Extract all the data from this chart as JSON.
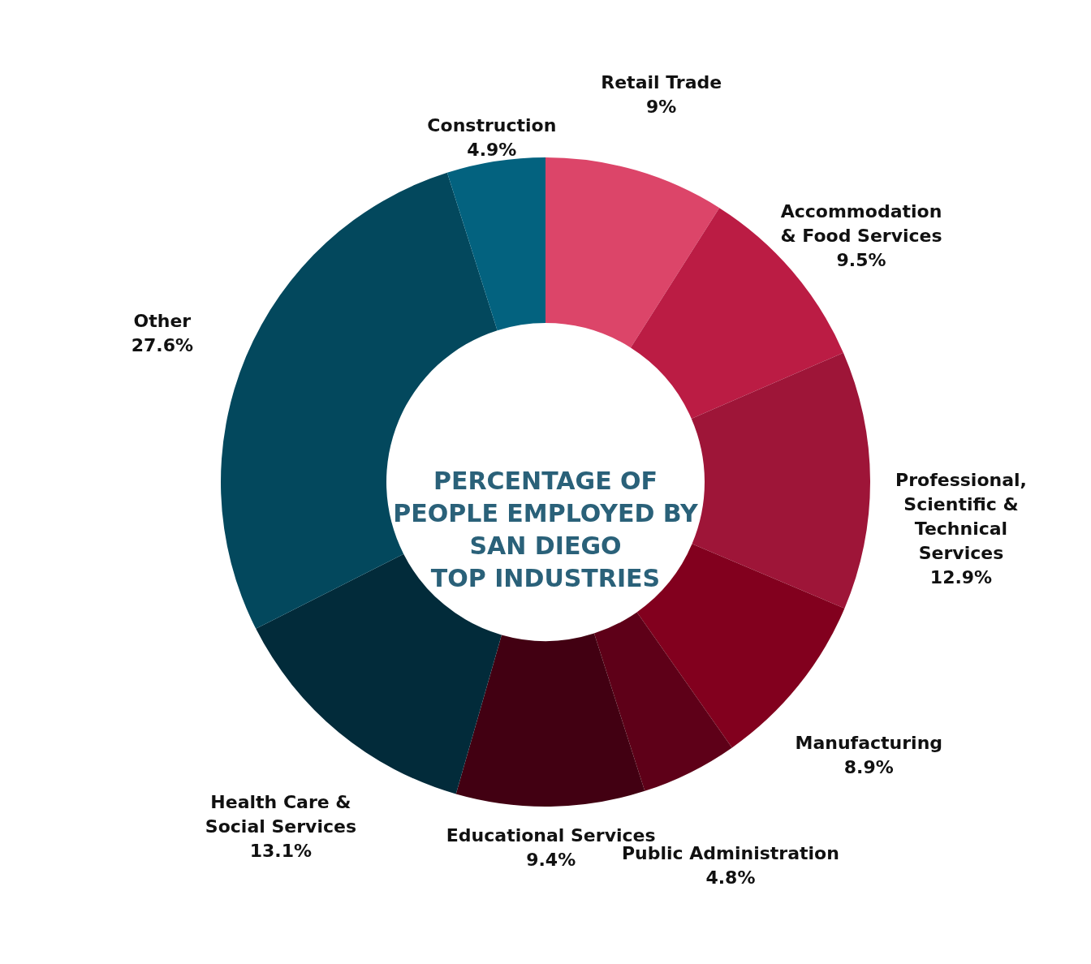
{
  "chart_data": {
    "type": "donut",
    "title": "PERCENTAGE OF\nPEOPLE EMPLOYED BY\nSAN DIEGO\nTOP INDUSTRIES",
    "categories": [
      "Retail Trade",
      "Accommodation\n& Food Services",
      "Professional,\nScientific &\nTechnical\nServices",
      "Manufacturing",
      "Public Administration",
      "Educational Services",
      "Health Care &\nSocial Services",
      "Other",
      "Construction"
    ],
    "values": [
      9,
      9.5,
      12.9,
      8.9,
      4.8,
      9.4,
      13.1,
      27.6,
      4.9
    ],
    "value_labels": [
      "9%",
      "9.5%",
      "12.9%",
      "8.9%",
      "4.8%",
      "9.4%",
      "13.1%",
      "27.6%",
      "4.9%"
    ],
    "colors": [
      "#dc4569",
      "#bb1c44",
      "#9e1538",
      "#82001e",
      "#5e0018",
      "#420012",
      "#022b3a",
      "#03485d",
      "#03627f"
    ]
  }
}
